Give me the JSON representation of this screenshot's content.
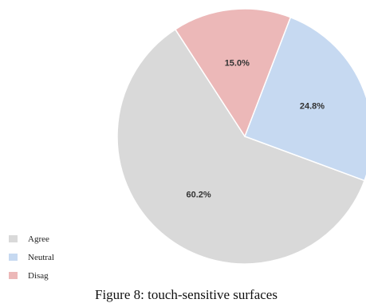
{
  "chart_data": {
    "type": "pie",
    "title": "",
    "slices": [
      {
        "name": "Agree",
        "value": 60.2,
        "label": "60.2%",
        "color": "#d9d9d9"
      },
      {
        "name": "Neutral",
        "value": 24.8,
        "label": "24.8%",
        "color": "#c6d9f1"
      },
      {
        "name": "Disag",
        "value": 15.0,
        "label": "15.0%",
        "color": "#ecb8b8"
      }
    ],
    "legend": {
      "placement": "bottom-left",
      "items": [
        "Agree",
        "Neutral",
        "Disag"
      ]
    }
  },
  "caption": "Figure 8: touch-sensitive surfaces"
}
